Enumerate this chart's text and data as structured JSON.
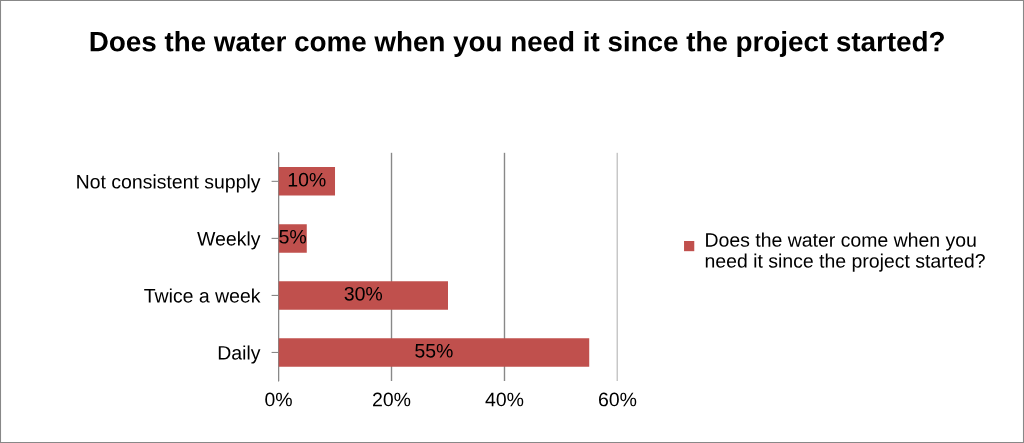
{
  "chart_data": {
    "type": "bar",
    "orientation": "horizontal",
    "title": "Does the water come when you need it since the project started?",
    "categories": [
      "Not consistent supply",
      "Weekly",
      "Twice a week",
      "Daily"
    ],
    "series": [
      {
        "name": "Does the water come when you need it since the project started?",
        "color": "#c0504d",
        "values": [
          10,
          5,
          30,
          55
        ],
        "value_labels": [
          "10%",
          "5%",
          "30%",
          "55%"
        ]
      }
    ],
    "xlim": [
      0,
      60
    ],
    "xticks": [
      {
        "value": 0,
        "label": "0%"
      },
      {
        "value": 20,
        "label": "20%"
      },
      {
        "value": 40,
        "label": "40%"
      },
      {
        "value": 60,
        "label": "60%"
      }
    ],
    "grid": "x",
    "legend": "right"
  }
}
